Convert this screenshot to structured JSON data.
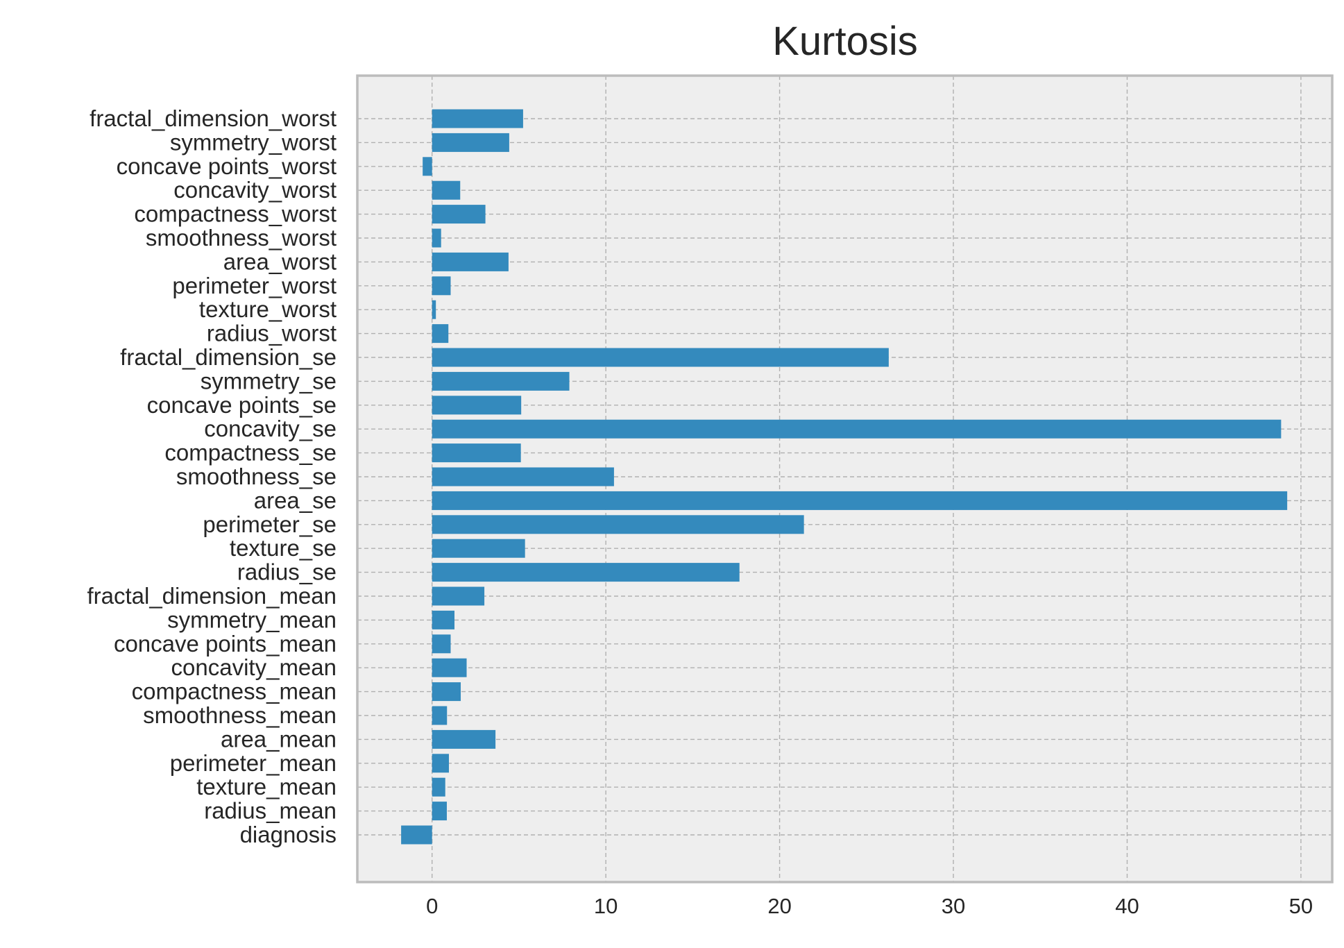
{
  "chart_data": {
    "type": "bar",
    "orientation": "horizontal",
    "title": "Kurtosis",
    "xlabel": "",
    "ylabel": "",
    "xlim": [
      -4.3,
      51.8
    ],
    "xticks": [
      0,
      10,
      20,
      30,
      40,
      50
    ],
    "xtick_labels": [
      "0",
      "10",
      "20",
      "30",
      "40",
      "50"
    ],
    "grid": true,
    "bar_color": "#348abd",
    "background_color": "#eeeeee",
    "categories": [
      "diagnosis",
      "radius_mean",
      "texture_mean",
      "perimeter_mean",
      "area_mean",
      "smoothness_mean",
      "compactness_mean",
      "concavity_mean",
      "concave points_mean",
      "symmetry_mean",
      "fractal_dimension_mean",
      "radius_se",
      "texture_se",
      "perimeter_se",
      "area_se",
      "smoothness_se",
      "compactness_se",
      "concavity_se",
      "concave points_se",
      "symmetry_se",
      "fractal_dimension_se",
      "radius_worst",
      "texture_worst",
      "perimeter_worst",
      "area_worst",
      "smoothness_worst",
      "compactness_worst",
      "concavity_worst",
      "concave points_worst",
      "symmetry_worst",
      "fractal_dimension_worst"
    ],
    "values": [
      -1.78,
      0.85,
      0.76,
      0.97,
      3.65,
      0.86,
      1.65,
      1.99,
      1.07,
      1.29,
      3.01,
      17.69,
      5.35,
      21.4,
      49.21,
      10.47,
      5.11,
      48.86,
      5.13,
      7.9,
      26.28,
      0.94,
      0.22,
      1.07,
      4.4,
      0.52,
      3.07,
      1.62,
      -0.54,
      4.44,
      5.24
    ]
  }
}
